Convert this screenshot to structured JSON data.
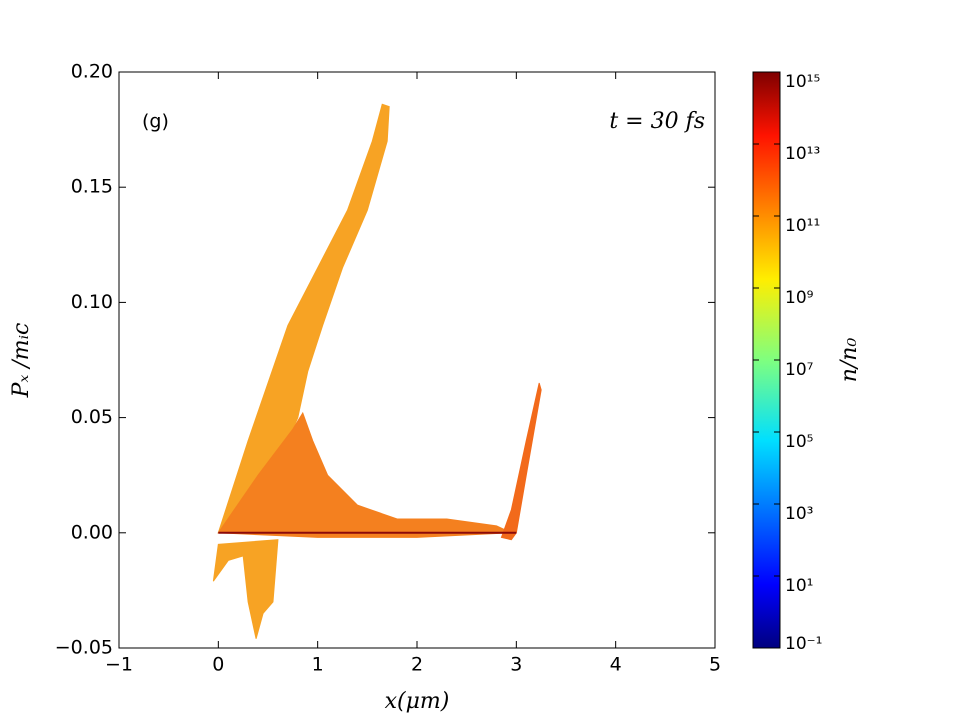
{
  "chart_data": {
    "type": "phase-space",
    "annotations": [
      "(g)",
      "t = 30 fs"
    ],
    "xlabel": "x(μm)",
    "ylabel": "Pₓ /mᵢc",
    "colorbar_label": "n/n₀",
    "xlim": [
      -1,
      5
    ],
    "xticks": [
      {
        "value": -1,
        "label": "−1"
      },
      0,
      1,
      2,
      3,
      4,
      5
    ],
    "ylim": [
      -0.05,
      0.2
    ],
    "yticks": [
      {
        "value": -0.05,
        "label": "−0.05"
      },
      {
        "value": 0,
        "label": "0.00"
      },
      0.05,
      {
        "value": 0.1,
        "label": "0.10"
      },
      0.15,
      {
        "value": 0.2,
        "label": "0.20"
      }
    ],
    "clim": [
      0.1,
      1000000000000000.0
    ],
    "clog": true,
    "cticks": [
      {
        "value": 0.1,
        "label": "10⁻¹"
      },
      {
        "value": 10,
        "label": "10¹"
      },
      {
        "value": 1000,
        "label": "10³"
      },
      {
        "value": 100000,
        "label": "10⁵"
      },
      {
        "value": 10000000,
        "label": "10⁷"
      },
      {
        "value": 1000000000,
        "label": "10⁹"
      },
      {
        "value": 100000000000,
        "label": "10¹¹"
      },
      {
        "value": 10000000000000,
        "label": "10¹³"
      },
      {
        "value": 1000000000000000,
        "label": "10¹⁵"
      }
    ],
    "regions": [
      {
        "color": "#f7a324",
        "x": [
          0,
          0.3,
          0.7,
          1.0,
          1.3,
          1.55,
          1.65,
          1.72,
          1.7,
          1.5,
          1.25,
          1.05,
          0.9,
          0.8,
          0.6,
          0.3
        ],
        "y": [
          0,
          0.04,
          0.09,
          0.115,
          0.14,
          0.17,
          0.186,
          0.185,
          0.17,
          0.14,
          0.115,
          0.09,
          0.07,
          0.05,
          0.03,
          0.005
        ]
      },
      {
        "color": "#f7a324",
        "x": [
          -0.05,
          0.0,
          0.6,
          0.55,
          0.45,
          0.38,
          0.3,
          0.25,
          0.1
        ],
        "y": [
          -0.021,
          -0.005,
          -0.003,
          -0.03,
          -0.035,
          -0.046,
          -0.03,
          -0.01,
          -0.012
        ]
      },
      {
        "color": "#f4801f",
        "x": [
          0,
          0.4,
          0.75,
          0.85,
          0.95,
          1.1,
          1.4,
          1.8,
          2.3,
          2.8,
          2.95,
          2.0,
          1.0
        ],
        "y": [
          0,
          0.025,
          0.045,
          0.052,
          0.04,
          0.025,
          0.012,
          0.006,
          0.006,
          0.003,
          0,
          -0.002,
          -0.002
        ]
      },
      {
        "color": "#f26a1b",
        "x": [
          2.85,
          2.95,
          3.1,
          3.23,
          3.25,
          3.1,
          3.0,
          2.95
        ],
        "y": [
          -0.002,
          0.01,
          0.04,
          0.065,
          0.062,
          0.025,
          0,
          -0.003
        ]
      },
      {
        "color": "#8b0a0a",
        "x": [
          0,
          3
        ],
        "y": [
          0,
          0
        ]
      }
    ]
  }
}
